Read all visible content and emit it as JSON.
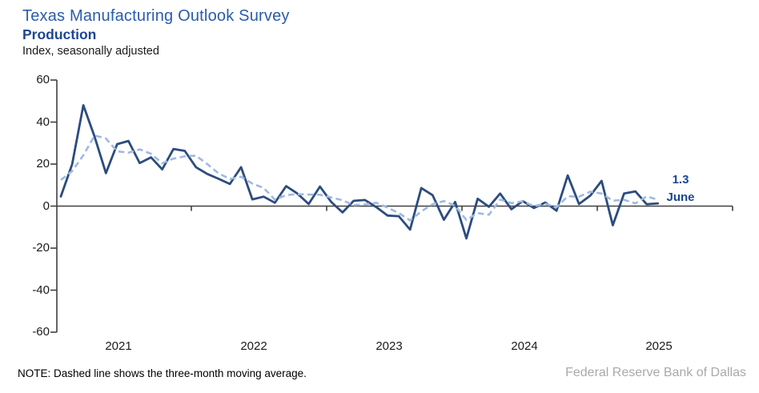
{
  "header": {
    "title": "Texas Manufacturing Outlook Survey",
    "series_title": "Production",
    "units_label": "Index, seasonally adjusted"
  },
  "annotation": {
    "value": "1.3",
    "month": "June"
  },
  "note": "NOTE: Dashed line shows the three-month moving average.",
  "footer": "Federal Reserve Bank of Dallas",
  "colors": {
    "title_blue": "#2a5cac",
    "series_title_blue": "#1c4693",
    "annotation_blue": "#1c4693",
    "line_dark_blue": "#2b4c7e",
    "line_light_blue": "#9fb9e2",
    "axis_gray": "#404040",
    "label_black": "#1a1a1a",
    "footer_gray": "#a9a9a9"
  },
  "chart_data": {
    "type": "line",
    "title": "Texas Manufacturing Outlook Survey — Production",
    "ylabel": "Index, seasonally adjusted",
    "ylim": [
      -60,
      60
    ],
    "y_ticks": [
      60,
      40,
      20,
      0,
      -20,
      -40,
      -60
    ],
    "grid": false,
    "legend_position": "none",
    "frequency": "monthly",
    "start_month": "2021-01",
    "end_month": "2025-06",
    "year_labels": [
      "2021",
      "2022",
      "2023",
      "2024",
      "2025"
    ],
    "latest": {
      "month": "June",
      "value": 1.3
    },
    "series": [
      {
        "name": "Production index (monthly)",
        "style": "solid",
        "values": [
          4.6,
          19.9,
          48.0,
          33.0,
          15.7,
          29.5,
          31.0,
          20.5,
          23.2,
          17.5,
          27.2,
          26.3,
          18.5,
          15.3,
          13.0,
          10.5,
          18.5,
          3.2,
          4.5,
          1.6,
          9.5,
          6.0,
          1.0,
          9.3,
          2.0,
          -3.0,
          2.5,
          2.9,
          -0.5,
          -4.5,
          -4.8,
          -11.2,
          8.6,
          5.2,
          -6.5,
          2.0,
          -15.4,
          3.5,
          -0.3,
          6.0,
          -1.5,
          2.4,
          -0.9,
          1.7,
          -2.2,
          14.6,
          1.0,
          5.0,
          12.0,
          -9.1,
          6.0,
          7.0,
          0.9,
          1.3
        ]
      },
      {
        "name": "Three-month moving average",
        "style": "dashed",
        "values": [
          12.4,
          16.7,
          24.2,
          33.6,
          32.2,
          26.1,
          25.4,
          27.0,
          24.9,
          20.4,
          22.6,
          23.7,
          24.0,
          20.0,
          15.6,
          12.9,
          14.0,
          10.7,
          8.7,
          3.1,
          5.2,
          5.7,
          5.5,
          5.4,
          4.1,
          2.8,
          0.5,
          0.8,
          1.6,
          -0.7,
          -3.3,
          -6.8,
          -2.5,
          0.9,
          2.4,
          0.2,
          -6.6,
          -3.3,
          -4.1,
          3.1,
          1.4,
          2.3,
          0.0,
          1.1,
          -0.5,
          4.7,
          4.5,
          6.9,
          6.0,
          2.6,
          3.0,
          1.3,
          4.6,
          3.1
        ]
      }
    ]
  }
}
